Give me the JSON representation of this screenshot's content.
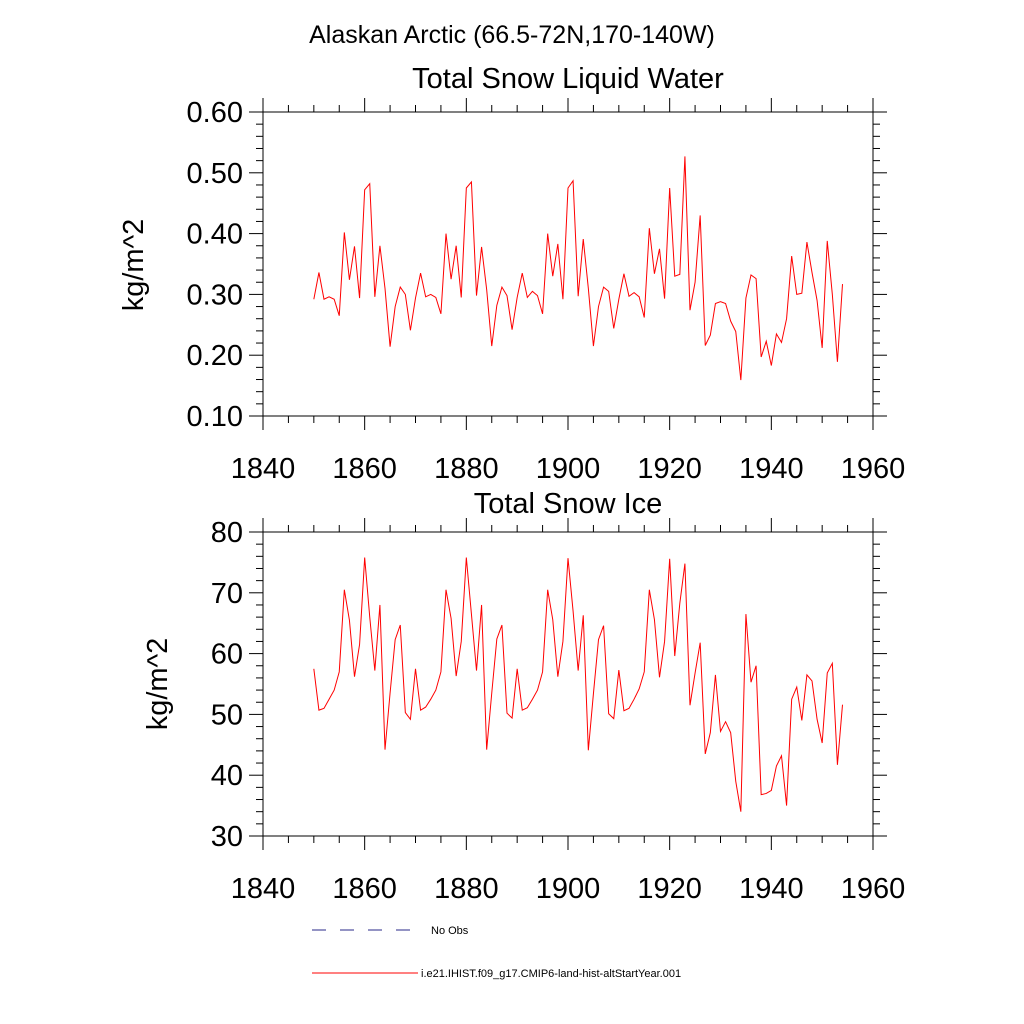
{
  "page_title": "Alaskan Arctic (66.5-72N,170-140W)",
  "chart_data": [
    {
      "type": "line",
      "title": "Total Snow Liquid Water",
      "xlabel": "",
      "ylabel": "kg/m^2",
      "xlim": [
        1840,
        1960
      ],
      "ylim": [
        0.1,
        0.6
      ],
      "x_ticks": [
        1840,
        1860,
        1880,
        1900,
        1920,
        1940,
        1960
      ],
      "x_tick_labels": [
        "1840",
        "1860",
        "1880",
        "1900",
        "1920",
        "1940",
        "1960"
      ],
      "y_ticks": [
        0.1,
        0.2,
        0.3,
        0.4,
        0.5,
        0.6
      ],
      "y_tick_labels": [
        "0.10",
        "0.20",
        "0.30",
        "0.40",
        "0.50",
        "0.60"
      ],
      "grid": false,
      "series": [
        {
          "name": "i.e21.IHIST.f09_g17.CMIP6-land-hist-altStartYear.001",
          "color": "#ff0000",
          "x": [
            1850,
            1851,
            1852,
            1853,
            1854,
            1855,
            1856,
            1857,
            1858,
            1859,
            1860,
            1861,
            1862,
            1863,
            1864,
            1865,
            1866,
            1867,
            1868,
            1869,
            1870,
            1871,
            1872,
            1873,
            1874,
            1875,
            1876,
            1877,
            1878,
            1879,
            1880,
            1881,
            1882,
            1883,
            1884,
            1885,
            1886,
            1887,
            1888,
            1889,
            1890,
            1891,
            1892,
            1893,
            1894,
            1895,
            1896,
            1897,
            1898,
            1899,
            1900,
            1901,
            1902,
            1903,
            1904,
            1905,
            1906,
            1907,
            1908,
            1909,
            1910,
            1911,
            1912,
            1913,
            1914,
            1915,
            1916,
            1917,
            1918,
            1919,
            1920,
            1921,
            1922,
            1923,
            1924,
            1925,
            1926,
            1927,
            1928,
            1929,
            1930,
            1931,
            1932,
            1933,
            1934,
            1935,
            1936,
            1937,
            1938,
            1939,
            1940,
            1941,
            1942,
            1943,
            1944,
            1945,
            1946,
            1947,
            1948,
            1949,
            1950,
            1951,
            1952,
            1953,
            1954
          ],
          "values": [
            0.292,
            0.336,
            0.292,
            0.296,
            0.292,
            0.265,
            0.402,
            0.324,
            0.379,
            0.294,
            0.472,
            0.482,
            0.296,
            0.38,
            0.31,
            0.214,
            0.28,
            0.312,
            0.3,
            0.241,
            0.294,
            0.335,
            0.296,
            0.3,
            0.295,
            0.268,
            0.4,
            0.325,
            0.38,
            0.295,
            0.475,
            0.485,
            0.298,
            0.378,
            0.308,
            0.215,
            0.282,
            0.312,
            0.298,
            0.242,
            0.295,
            0.335,
            0.295,
            0.305,
            0.298,
            0.268,
            0.4,
            0.33,
            0.383,
            0.292,
            0.475,
            0.487,
            0.297,
            0.391,
            0.31,
            0.215,
            0.28,
            0.312,
            0.305,
            0.244,
            0.292,
            0.334,
            0.297,
            0.303,
            0.296,
            0.262,
            0.409,
            0.334,
            0.375,
            0.293,
            0.475,
            0.33,
            0.333,
            0.527,
            0.274,
            0.32,
            0.43,
            0.216,
            0.233,
            0.285,
            0.288,
            0.285,
            0.256,
            0.239,
            0.159,
            0.294,
            0.332,
            0.326,
            0.197,
            0.223,
            0.183,
            0.235,
            0.221,
            0.26,
            0.363,
            0.3,
            0.302,
            0.386,
            0.336,
            0.29,
            0.212,
            0.388,
            0.3,
            0.189,
            0.317
          ]
        }
      ]
    },
    {
      "type": "line",
      "title": "Total Snow Ice",
      "xlabel": "",
      "ylabel": "kg/m^2",
      "xlim": [
        1840,
        1960
      ],
      "ylim": [
        30,
        80
      ],
      "x_ticks": [
        1840,
        1860,
        1880,
        1900,
        1920,
        1940,
        1960
      ],
      "x_tick_labels": [
        "1840",
        "1860",
        "1880",
        "1900",
        "1920",
        "1940",
        "1960"
      ],
      "y_ticks": [
        30,
        40,
        50,
        60,
        70,
        80
      ],
      "y_tick_labels": [
        "30",
        "40",
        "50",
        "60",
        "70",
        "80"
      ],
      "grid": false,
      "series": [
        {
          "name": "i.e21.IHIST.f09_g17.CMIP6-land-hist-altStartYear.001",
          "color": "#ff0000",
          "x": [
            1850,
            1851,
            1852,
            1853,
            1854,
            1855,
            1856,
            1857,
            1858,
            1859,
            1860,
            1861,
            1862,
            1863,
            1864,
            1865,
            1866,
            1867,
            1868,
            1869,
            1870,
            1871,
            1872,
            1873,
            1874,
            1875,
            1876,
            1877,
            1878,
            1879,
            1880,
            1881,
            1882,
            1883,
            1884,
            1885,
            1886,
            1887,
            1888,
            1889,
            1890,
            1891,
            1892,
            1893,
            1894,
            1895,
            1896,
            1897,
            1898,
            1899,
            1900,
            1901,
            1902,
            1903,
            1904,
            1905,
            1906,
            1907,
            1908,
            1909,
            1910,
            1911,
            1912,
            1913,
            1914,
            1915,
            1916,
            1917,
            1918,
            1919,
            1920,
            1921,
            1922,
            1923,
            1924,
            1925,
            1926,
            1927,
            1928,
            1929,
            1930,
            1931,
            1932,
            1933,
            1934,
            1935,
            1936,
            1937,
            1938,
            1939,
            1940,
            1941,
            1942,
            1943,
            1944,
            1945,
            1946,
            1947,
            1948,
            1949,
            1950,
            1951,
            1952,
            1953,
            1954
          ],
          "values": [
            57.5,
            50.7,
            51.0,
            52.5,
            54.0,
            57.0,
            70.5,
            65.5,
            56.2,
            61.5,
            75.8,
            66.0,
            57.2,
            68.0,
            44.2,
            53.5,
            62.3,
            64.7,
            50.3,
            49.2,
            57.5,
            50.7,
            51.2,
            52.5,
            54.0,
            57.0,
            70.5,
            65.8,
            56.3,
            62.0,
            75.8,
            66.5,
            57.2,
            68.0,
            44.2,
            53.5,
            62.4,
            64.7,
            50.2,
            49.4,
            57.5,
            50.7,
            51.1,
            52.5,
            54.0,
            57.0,
            70.5,
            65.6,
            56.2,
            62.0,
            75.7,
            67.0,
            57.2,
            66.3,
            44.1,
            53.4,
            62.3,
            64.6,
            50.1,
            49.3,
            57.3,
            50.6,
            51.0,
            52.5,
            54.2,
            57.0,
            70.5,
            65.6,
            56.1,
            62.0,
            75.6,
            59.6,
            68.3,
            74.8,
            51.5,
            56.8,
            61.8,
            43.5,
            47.0,
            56.5,
            47.2,
            48.8,
            47.0,
            39.0,
            34.0,
            66.5,
            55.3,
            58.0,
            36.8,
            37.0,
            37.5,
            41.5,
            43.2,
            35.0,
            52.5,
            54.5,
            49.0,
            56.5,
            55.5,
            49.2,
            45.3,
            56.8,
            58.4,
            41.7,
            51.6
          ]
        }
      ]
    }
  ],
  "legend": [
    {
      "label": "No Obs",
      "style": "dashed",
      "color": "#2a2a8a"
    },
    {
      "label": "i.e21.IHIST.f09_g17.CMIP6-land-hist-altStartYear.001",
      "style": "solid",
      "color": "#ff0000"
    }
  ]
}
